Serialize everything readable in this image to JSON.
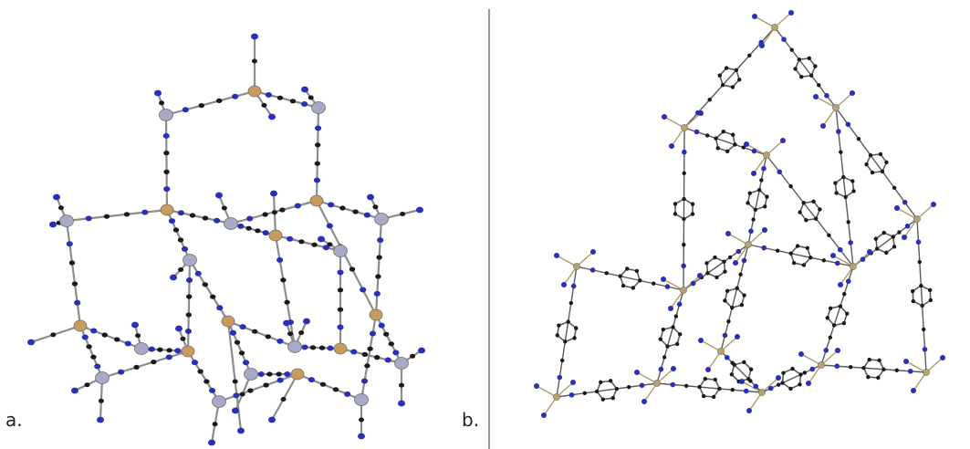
{
  "figure": {
    "panel_a": {
      "label": "a."
    },
    "panel_b": {
      "label": "b."
    }
  },
  "colors": {
    "metal_node": "#c89a5c",
    "linker_node": "#a7a9c7",
    "nitrogen_atom": "#2a2fb8",
    "carbon_atom": "#1a1a1a",
    "bond": "#8c8c8c",
    "ring_bond": "#5a5a5a",
    "divider": "#9a9a9a"
  }
}
